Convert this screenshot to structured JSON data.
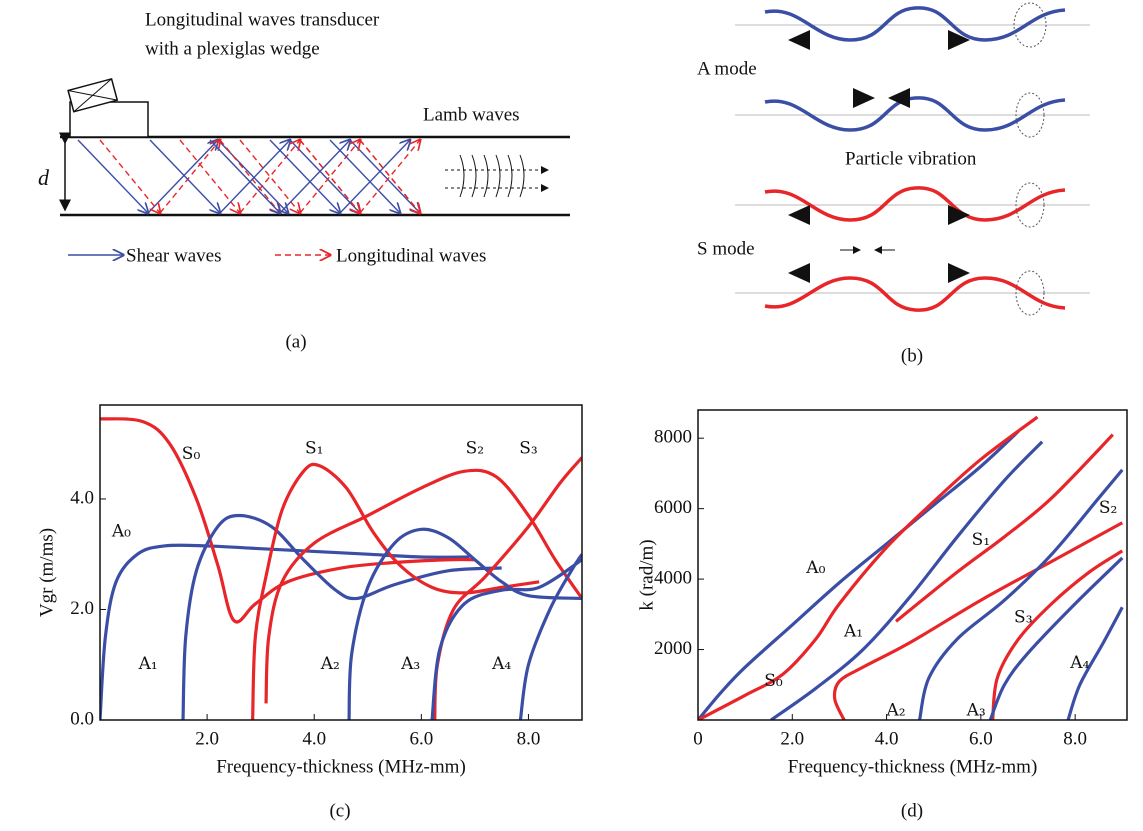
{
  "diagram_a": {
    "transducer_line1": "Longitudinal waves transducer",
    "transducer_line2": "with a plexiglas wedge",
    "lamb": "Lamb waves",
    "thickness": "d",
    "shear": "Shear waves",
    "longitudinal": "Longitudinal waves",
    "caption": "(a)"
  },
  "diagram_b": {
    "a_mode": "A mode",
    "particle": "Particle vibration",
    "s_mode": "S mode",
    "caption": "(b)"
  },
  "chart_data": [
    {
      "type": "line",
      "caption": "(c)",
      "xlabel": "Frequency-thickness (MHz-mm)",
      "ylabel": "Vgr (m/ms)",
      "xlim": [
        0,
        9
      ],
      "ylim": [
        0,
        5.7
      ],
      "xticks": [
        {
          "value": 2,
          "label": "2.0"
        },
        {
          "value": 4,
          "label": "4.0"
        },
        {
          "value": 6,
          "label": "6.0"
        },
        {
          "value": 8,
          "label": "8.0"
        }
      ],
      "yticks": [
        {
          "value": 0,
          "label": "0.0"
        },
        {
          "value": 2,
          "label": "2.0"
        },
        {
          "value": 4,
          "label": "4.0"
        }
      ],
      "series": [
        {
          "name": "A₀",
          "color": "#3b4ea6",
          "x": [
            0,
            0.1,
            0.3,
            0.7,
            1.2,
            2,
            3,
            4,
            5,
            6,
            6.9
          ],
          "values": [
            0,
            1.5,
            2.5,
            3.0,
            3.15,
            3.15,
            3.1,
            3.05,
            3.0,
            2.95,
            2.95
          ]
        },
        {
          "name": "S₀",
          "color": "#e8262a",
          "x": [
            0,
            0.8,
            1.3,
            1.8,
            2.2,
            2.5,
            2.9,
            3.5,
            4.5,
            5.5,
            6.5,
            7.0
          ],
          "values": [
            5.45,
            5.4,
            5.0,
            4.0,
            2.8,
            1.8,
            2.1,
            2.5,
            2.75,
            2.85,
            2.9,
            2.9
          ]
        },
        {
          "name": "A₁",
          "color": "#3b4ea6",
          "x": [
            1.55,
            1.6,
            1.8,
            2.2,
            2.6,
            3.2,
            3.8,
            4.4,
            4.8,
            5.5,
            6.5,
            7.5
          ],
          "values": [
            0,
            1.5,
            2.7,
            3.5,
            3.7,
            3.5,
            2.9,
            2.35,
            2.2,
            2.45,
            2.7,
            2.75
          ]
        },
        {
          "name": "S₁",
          "color": "#e8262a",
          "x": [
            2.85,
            2.9,
            3.1,
            3.4,
            3.8,
            4.1,
            4.6,
            5.1,
            5.6,
            6.2,
            6.8,
            7.5,
            8.2
          ],
          "values": [
            0,
            1.5,
            2.6,
            3.8,
            4.5,
            4.6,
            4.2,
            3.4,
            2.8,
            2.4,
            2.3,
            2.4,
            2.5
          ]
        },
        {
          "name": "S₂",
          "color": "#e8262a",
          "x": [
            3.1,
            3.15,
            3.4,
            4,
            5,
            6,
            6.8,
            7.4,
            8,
            8.5,
            9
          ],
          "values": [
            0.3,
            1.5,
            2.5,
            3.2,
            3.7,
            4.2,
            4.5,
            4.4,
            3.7,
            2.9,
            2.2
          ]
        },
        {
          "name": "A₂",
          "color": "#3b4ea6",
          "x": [
            4.65,
            4.7,
            5,
            5.5,
            6,
            6.5,
            7,
            7.5,
            8,
            9
          ],
          "values": [
            0,
            1.2,
            2.4,
            3.2,
            3.45,
            3.3,
            2.9,
            2.5,
            2.25,
            2.2
          ]
        },
        {
          "name": "S₃",
          "color": "#e8262a",
          "x": [
            6.25,
            6.3,
            6.6,
            7.2,
            8,
            8.6,
            9
          ],
          "values": [
            0,
            1.0,
            2.0,
            2.6,
            3.5,
            4.3,
            4.75
          ]
        },
        {
          "name": "A₃",
          "color": "#3b4ea6",
          "x": [
            6.2,
            6.35,
            6.8,
            7.5,
            8.2,
            9
          ],
          "values": [
            0,
            1.3,
            2.1,
            2.35,
            2.4,
            2.9
          ]
        },
        {
          "name": "A₄",
          "color": "#3b4ea6",
          "x": [
            7.85,
            8,
            8.4,
            8.8,
            9
          ],
          "values": [
            0,
            1.0,
            2.0,
            2.7,
            3.0
          ]
        }
      ]
    },
    {
      "type": "line",
      "caption": "(d)",
      "xlabel": "Frequency-thickness (MHz-mm)",
      "ylabel": "k (rad/m)",
      "xlim": [
        0,
        9.1
      ],
      "ylim": [
        0,
        8800
      ],
      "xticks": [
        0,
        {
          "value": 2,
          "label": "2.0"
        },
        {
          "value": 4,
          "label": "4.0"
        },
        {
          "value": 6,
          "label": "6.0"
        },
        {
          "value": 8,
          "label": "8.0"
        }
      ],
      "yticks": [
        2000,
        4000,
        6000,
        8000
      ],
      "series": [
        {
          "name": "A₀",
          "color": "#3b4ea6",
          "x": [
            0,
            0.5,
            1,
            2,
            3,
            4,
            5,
            6,
            6.8
          ],
          "values": [
            0,
            800,
            1500,
            2700,
            3900,
            5000,
            6100,
            7200,
            8200
          ]
        },
        {
          "name": "S₀",
          "color": "#e8262a",
          "x": [
            0,
            1,
            1.8,
            2.5,
            3,
            4,
            5,
            6,
            7.2
          ],
          "values": [
            0,
            700,
            1300,
            2300,
            3300,
            4900,
            6200,
            7400,
            8600
          ]
        },
        {
          "name": "A₁",
          "color": "#3b4ea6",
          "x": [
            1.55,
            2.5,
            3.5,
            4.5,
            5.5,
            6.5,
            7.3
          ],
          "values": [
            0,
            900,
            2000,
            3500,
            5200,
            6800,
            7900
          ]
        },
        {
          "name": "S₁",
          "color": "#e8262a",
          "x": [
            4.2,
            5.5,
            6.5,
            7.5,
            8.8
          ],
          "values": [
            2800,
            4200,
            5200,
            6300,
            8100
          ]
        },
        {
          "name": "S₂",
          "color": "#e8262a",
          "x": [
            3.1,
            2.9,
            3,
            3.5,
            4.5,
            6,
            7.5,
            9
          ],
          "values": [
            0,
            600,
            1100,
            1500,
            2200,
            3400,
            4500,
            5600
          ]
        },
        {
          "name": "A₂",
          "color": "#3b4ea6",
          "x": [
            4.7,
            4.9,
            5.5,
            6.5,
            7.5,
            8.5,
            9
          ],
          "values": [
            0,
            1200,
            2300,
            3400,
            4700,
            6300,
            7100
          ]
        },
        {
          "name": "S₃",
          "color": "#e8262a",
          "x": [
            6.25,
            6.35,
            6.8,
            7.5,
            8.3,
            9
          ],
          "values": [
            0,
            1200,
            2300,
            3300,
            4200,
            4800
          ]
        },
        {
          "name": "A₃",
          "color": "#3b4ea6",
          "x": [
            6.2,
            6.5,
            7,
            8,
            9
          ],
          "values": [
            0,
            1000,
            1900,
            3300,
            4600
          ]
        },
        {
          "name": "A₄",
          "color": "#3b4ea6",
          "x": [
            7.85,
            8.1,
            8.6,
            9
          ],
          "values": [
            0,
            1000,
            2200,
            3200
          ]
        }
      ]
    }
  ]
}
